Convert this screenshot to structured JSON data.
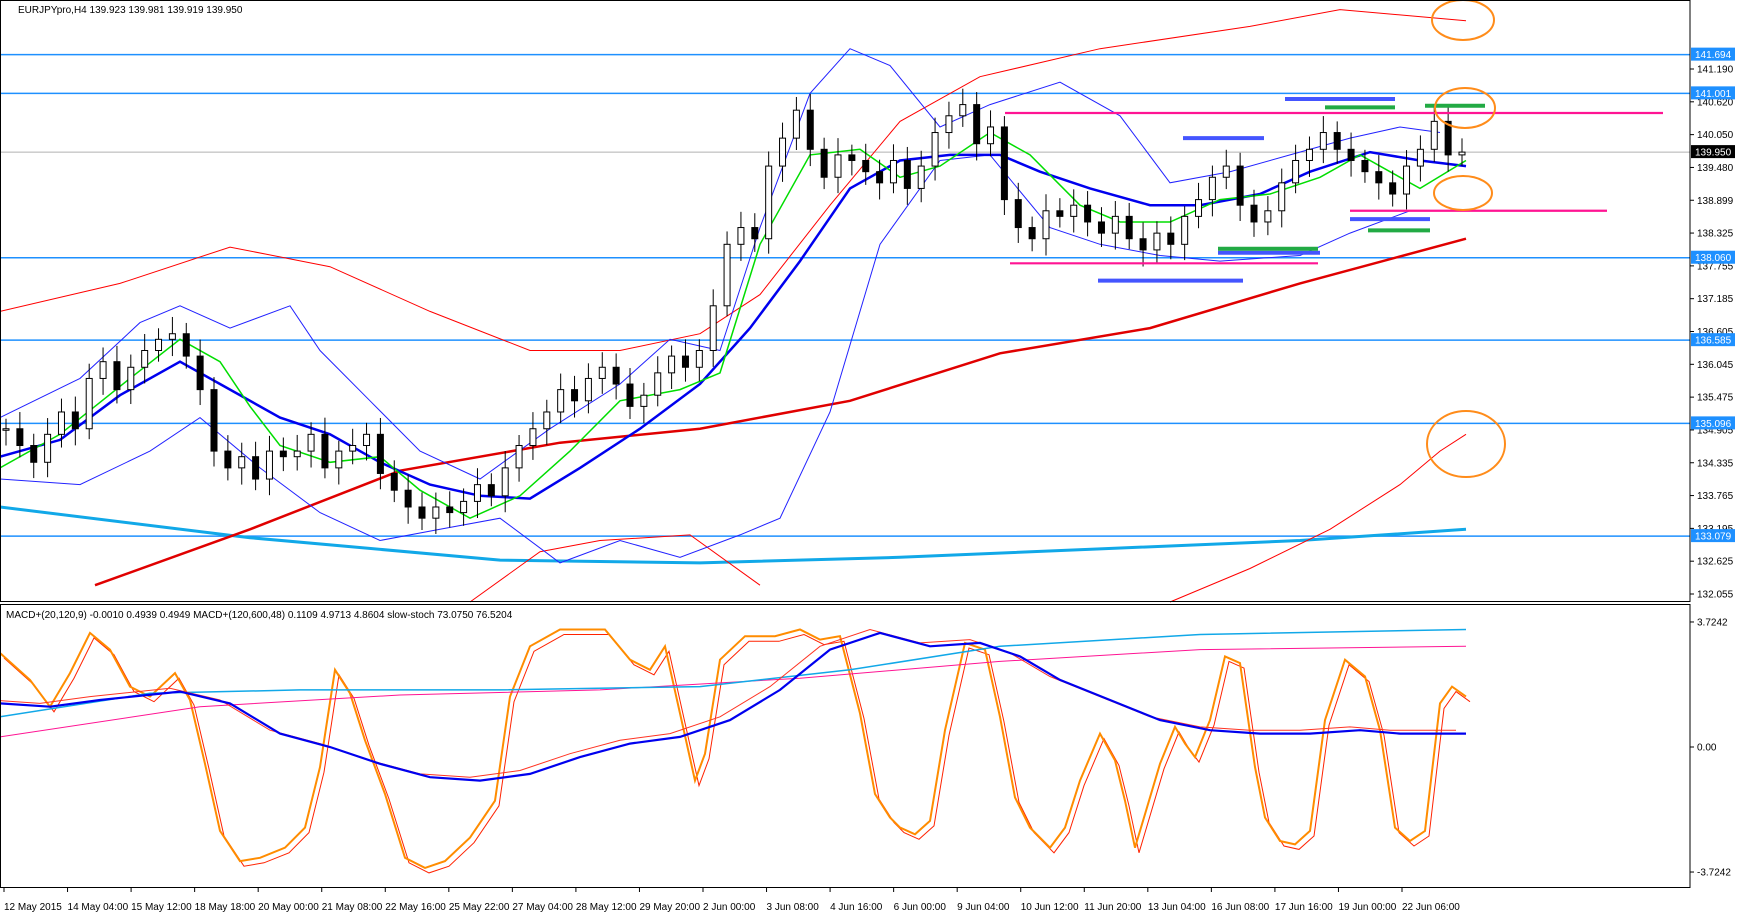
{
  "chart_data": {
    "type": "line",
    "main": {
      "header": "EURJPYpro,H4  139.923 139.981 139.919 139.950",
      "ylim": [
        131.9,
        142.6
      ],
      "price_ticks": [
        "141.190",
        "140.620",
        "140.050",
        "139.480",
        "138.899",
        "138.325",
        "137.755",
        "137.185",
        "136.605",
        "136.045",
        "135.475",
        "134.905",
        "134.335",
        "133.765",
        "133.195",
        "132.625",
        "132.055"
      ],
      "current_price": "139.950",
      "levels": [
        {
          "value": 141.694,
          "label": "141.694"
        },
        {
          "value": 141.001,
          "label": "141.001"
        },
        {
          "value": 138.06,
          "label": "138.060"
        },
        {
          "value": 136.585,
          "label": "136.585"
        },
        {
          "value": 135.096,
          "label": "135.096"
        },
        {
          "value": 133.079,
          "label": "133.079"
        }
      ],
      "ohlc_closes": [
        135.0,
        134.7,
        134.4,
        134.9,
        135.3,
        135.0,
        135.9,
        136.2,
        135.7,
        136.1,
        136.4,
        136.6,
        136.7,
        136.3,
        135.7,
        134.6,
        134.3,
        134.5,
        134.1,
        134.6,
        134.5,
        134.6,
        134.9,
        134.3,
        134.6,
        134.7,
        134.9,
        134.2,
        133.9,
        133.6,
        133.4,
        133.6,
        133.5,
        133.7,
        134.0,
        133.8,
        134.3,
        134.7,
        135.0,
        135.3,
        135.7,
        135.5,
        135.9,
        136.1,
        135.8,
        135.4,
        135.6,
        136.0,
        136.3,
        136.1,
        136.4,
        137.2,
        138.3,
        138.6,
        138.4,
        139.7,
        140.2,
        140.7,
        140.0,
        139.5,
        139.9,
        139.8,
        139.6,
        139.4,
        139.8,
        139.3,
        139.7,
        140.3,
        140.6,
        140.8,
        140.1,
        140.4,
        139.1,
        138.6,
        138.4,
        138.9,
        138.8,
        139.0,
        138.7,
        138.5,
        138.8,
        138.4,
        138.2,
        138.5,
        138.3,
        138.8,
        139.1,
        139.5,
        139.7,
        139.0,
        138.7,
        138.9,
        139.4,
        139.8,
        140.0,
        140.3,
        140.0,
        139.8,
        139.6,
        139.4,
        139.2,
        139.7,
        140.0,
        140.5,
        139.9,
        139.95
      ]
    },
    "indicator": {
      "header": "MACD+(20,120,9) -0.0010 0.4939 0.4949  MACD+(120,600,48) 0.1109 4.9713 4.8604  slow-stoch 73.0750 76.5204",
      "ylim": [
        -4.2,
        4.2
      ],
      "ticks": [
        "3.7242",
        "0.00",
        "-3.7242"
      ]
    },
    "x_labels": [
      "12 May 2015",
      "14 May 04:00",
      "15 May 12:00",
      "18 May 18:00",
      "20 May 00:00",
      "21 May 08:00",
      "22 May 16:00",
      "25 May 22:00",
      "27 May 04:00",
      "28 May 12:00",
      "29 May 20:00",
      "2 Jun 00:00",
      "3 Jun 08:00",
      "4 Jun 16:00",
      "6 Jun 00:00",
      "9 Jun 04:00",
      "10 Jun 12:00",
      "11 Jun 20:00",
      "13 Jun 04:00",
      "16 Jun 08:00",
      "17 Jun 16:00",
      "19 Jun 00:00",
      "22 Jun 06:00"
    ],
    "colors": {
      "level": "#1e90ff",
      "ma_fast": "#00dd00",
      "ma_mid": "#0000ee",
      "bollinger": "#2222ff",
      "envelope": "#ff0000",
      "ma_slow": "#e00000",
      "ma_long": "#11a8e8",
      "pink": "#ff1493",
      "zone_blue": "#4455ff",
      "zone_green": "#22aa44",
      "circle": "#ff8c1a",
      "stoch": "#ff8c00"
    }
  }
}
